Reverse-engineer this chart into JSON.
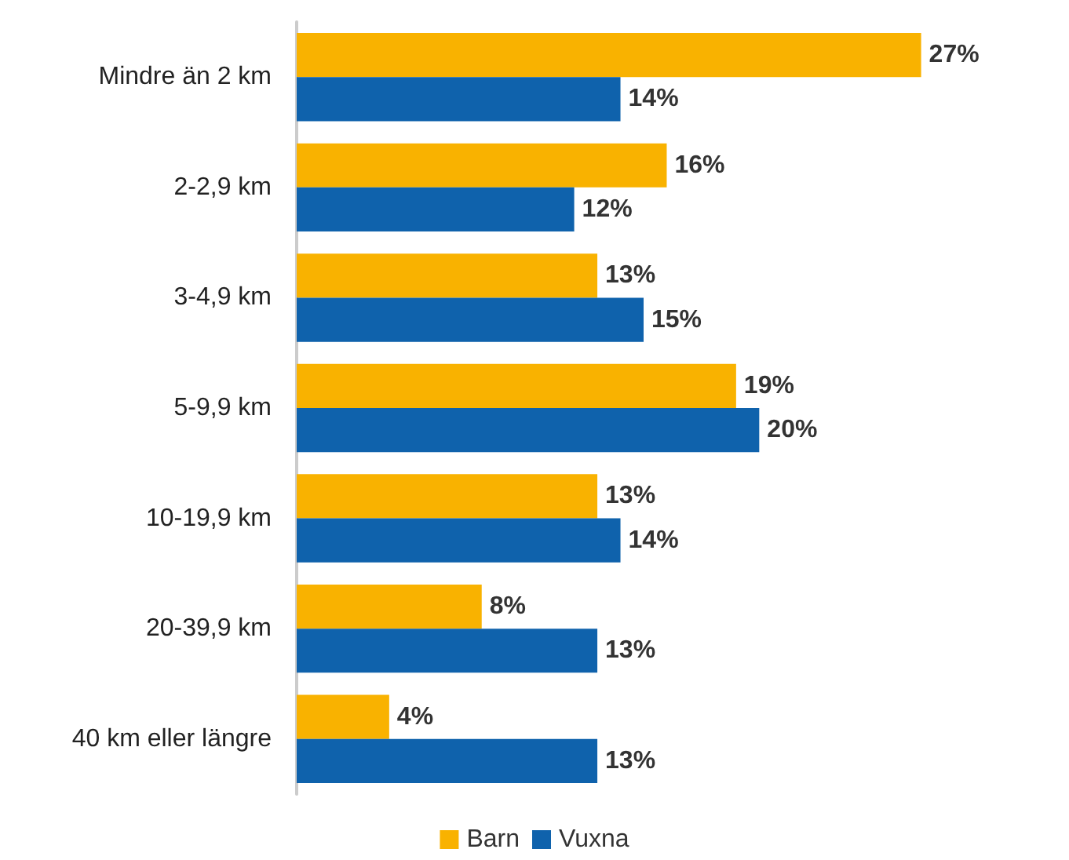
{
  "chart_data": {
    "type": "bar",
    "orientation": "horizontal",
    "categories": [
      "Mindre än 2 km",
      "2-2,9 km",
      "3-4,9 km",
      "5-9,9 km",
      "10-19,9 km",
      "20-39,9 km",
      "40 km eller längre"
    ],
    "series": [
      {
        "name": "Barn",
        "color": "#f9b200",
        "values": [
          27,
          16,
          13,
          19,
          13,
          8,
          4
        ],
        "value_labels": [
          "27%",
          "16%",
          "13%",
          "19%",
          "13%",
          "8%",
          "4%"
        ]
      },
      {
        "name": "Vuxna",
        "color": "#0f62ac",
        "values": [
          14,
          12,
          15,
          20,
          14,
          13,
          13
        ],
        "value_labels": [
          "14%",
          "12%",
          "15%",
          "20%",
          "14%",
          "13%",
          "13%"
        ]
      }
    ],
    "legend": "bottom",
    "grid": false
  }
}
